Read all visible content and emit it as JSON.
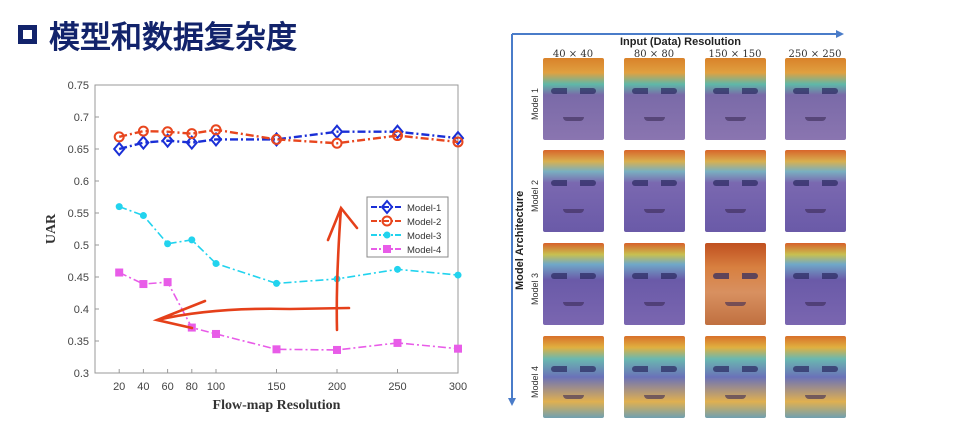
{
  "slide_title": "模型和数据复杂度",
  "chart_data": {
    "type": "line",
    "title": "",
    "xlabel": "Flow-map Resolution",
    "ylabel": "UAR",
    "x": [
      20,
      40,
      60,
      80,
      100,
      150,
      200,
      250,
      300
    ],
    "xlim": [
      0,
      300
    ],
    "ylim": [
      0.3,
      0.75
    ],
    "yticks": [
      "0.3",
      "0.35",
      "0.4",
      "0.45",
      "0.5",
      "0.55",
      "0.6",
      "0.65",
      "0.7",
      "0.75"
    ],
    "xticks": [
      "20",
      "40",
      "60",
      "80",
      "100",
      "150",
      "200",
      "250",
      "300"
    ],
    "grid": false,
    "legend_position": "right-middle",
    "series": [
      {
        "name": "Model-1",
        "color": "#1a2fd6",
        "marker": "diamond",
        "values": [
          0.65,
          0.66,
          0.663,
          0.66,
          0.665,
          0.665,
          0.677,
          0.677,
          0.667
        ]
      },
      {
        "name": "Model-2",
        "color": "#e8461e",
        "marker": "circle",
        "values": [
          0.669,
          0.678,
          0.677,
          0.674,
          0.68,
          0.665,
          0.659,
          0.671,
          0.661
        ]
      },
      {
        "name": "Model-3",
        "color": "#22d3ee",
        "marker": "dot",
        "values": [
          0.56,
          0.546,
          0.502,
          0.508,
          0.471,
          0.44,
          0.447,
          0.462,
          0.453
        ]
      },
      {
        "name": "Model-4",
        "color": "#e85ce8",
        "marker": "square",
        "values": [
          0.457,
          0.439,
          0.442,
          0.371,
          0.361,
          0.337,
          0.336,
          0.347,
          0.338
        ]
      }
    ]
  },
  "grid_figure": {
    "x_axis_title": "Input (Data) Resolution",
    "y_axis_title": "Model Architecture",
    "columns": [
      "40 × 40",
      "80 × 80",
      "150 × 150",
      "250 × 250"
    ],
    "rows": [
      "Model 1",
      "Model 2",
      "Model 3",
      "Model 4"
    ]
  }
}
